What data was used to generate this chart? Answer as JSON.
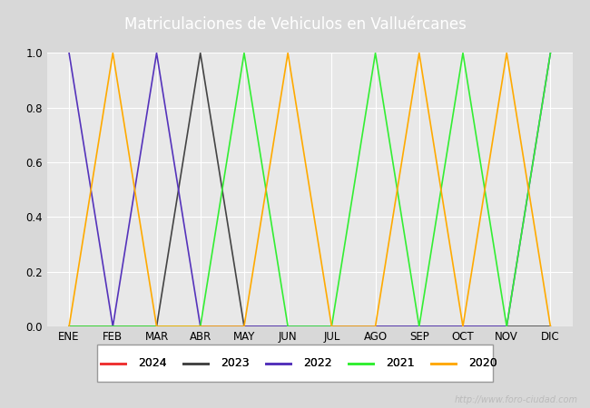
{
  "title": "Matriculaciones de Vehiculos en Valluércanes",
  "title_color": "#ffffff",
  "title_bg_color": "#4472c4",
  "months": [
    "ENE",
    "FEB",
    "MAR",
    "ABR",
    "MAY",
    "JUN",
    "JUL",
    "AGO",
    "SEP",
    "OCT",
    "NOV",
    "DIC"
  ],
  "bg_color": "#d8d8d8",
  "plot_bg_color": "#e8e8e8",
  "grid_color": "#ffffff",
  "ylim": [
    0.0,
    1.0
  ],
  "yticks": [
    0.0,
    0.2,
    0.4,
    0.6,
    0.8,
    1.0
  ],
  "series": [
    {
      "label": "2024",
      "color": "#ee3333",
      "data": [
        0,
        0,
        0,
        0,
        0,
        null,
        null,
        null,
        null,
        null,
        null,
        null
      ]
    },
    {
      "label": "2023",
      "color": "#444444",
      "data": [
        0,
        0,
        0,
        1,
        0,
        0,
        0,
        0,
        0,
        0,
        0,
        0
      ]
    },
    {
      "label": "2022",
      "color": "#5533bb",
      "data": [
        1,
        0,
        1,
        0,
        0,
        0,
        0,
        0,
        0,
        0,
        0,
        1
      ]
    },
    {
      "label": "2021",
      "color": "#33ee33",
      "data": [
        0,
        0,
        0,
        0,
        1,
        0,
        0,
        1,
        0,
        1,
        0,
        1
      ]
    },
    {
      "label": "2020",
      "color": "#ffaa00",
      "data": [
        0,
        1,
        0,
        0,
        0,
        1,
        0,
        0,
        1,
        0,
        1,
        0
      ]
    }
  ],
  "watermark": "http://www.foro-ciudad.com",
  "watermark_color": "#bbbbbb",
  "watermark_fontsize": 7
}
